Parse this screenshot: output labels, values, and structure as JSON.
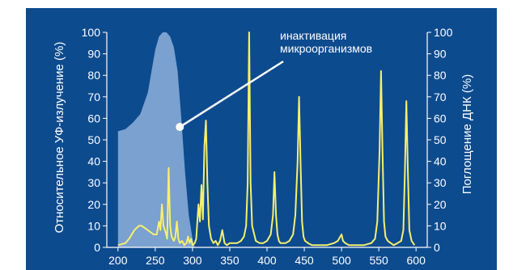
{
  "chart_data": {
    "type": "line",
    "title": "",
    "xlabel": "",
    "ylabel_left": "Относительное УФ-излучение (%)",
    "ylabel_right": "Поглощение ДНК (%)",
    "xlim": [
      185,
      615
    ],
    "ylim_left": [
      0,
      100
    ],
    "ylim_right": [
      0,
      100
    ],
    "x_ticks": [
      200,
      250,
      300,
      350,
      400,
      450,
      500,
      550,
      600
    ],
    "y_ticks_left": [
      0,
      10,
      20,
      30,
      40,
      50,
      60,
      70,
      80,
      90,
      100
    ],
    "y_ticks_right": [
      0,
      10,
      20,
      30,
      40,
      50,
      60,
      70,
      80,
      90,
      100
    ],
    "annotation": {
      "lines": [
        "инактивация",
        "микроорганизмов"
      ],
      "target_x": 283,
      "target_y": 56
    },
    "series": [
      {
        "role": "area",
        "axis": "right",
        "color": "#7aa1cf",
        "x": [
          200,
          210,
          220,
          230,
          240,
          245,
          250,
          255,
          260,
          265,
          270,
          275,
          280,
          285,
          290,
          295,
          300,
          303
        ],
        "y": [
          54,
          55,
          58,
          62,
          72,
          82,
          92,
          98,
          100,
          100,
          98,
          93,
          82,
          60,
          35,
          15,
          4,
          0
        ]
      },
      {
        "role": "line",
        "axis": "left",
        "color": "#f7f06b",
        "x": [
          200,
          210,
          215,
          222,
          228,
          232,
          236,
          240,
          244,
          248,
          252,
          255,
          257,
          259,
          261,
          264,
          266,
          268,
          270,
          272,
          275,
          277,
          279,
          281,
          283,
          286,
          289,
          292,
          294,
          296,
          298,
          300,
          303,
          305,
          308,
          310,
          312,
          314,
          316,
          318,
          320,
          322,
          325,
          328,
          331,
          334,
          337,
          340,
          343,
          346,
          350,
          355,
          360,
          365,
          369,
          372,
          374,
          376,
          378,
          380,
          385,
          390,
          395,
          400,
          405,
          408,
          410,
          412,
          414,
          416,
          418,
          420,
          425,
          430,
          435,
          438,
          441,
          443,
          445,
          447,
          449,
          451,
          455,
          460,
          470,
          480,
          490,
          495,
          500,
          502,
          505,
          510,
          520,
          530,
          540,
          545,
          548,
          551,
          553,
          555,
          557,
          559,
          562,
          566,
          570,
          575,
          580,
          583,
          585,
          587,
          589,
          591,
          594,
          598
        ],
        "y": [
          1,
          2,
          4,
          8,
          10,
          10,
          9,
          8,
          7,
          6,
          6,
          12,
          8,
          20,
          10,
          7,
          4,
          37,
          10,
          5,
          3,
          5,
          12,
          4,
          2,
          3,
          1,
          2,
          5,
          2,
          4,
          1,
          2,
          4,
          20,
          12,
          29,
          13,
          47,
          59,
          30,
          10,
          4,
          2,
          3,
          1,
          3,
          8,
          2,
          1,
          2,
          2,
          2,
          3,
          5,
          10,
          30,
          100,
          30,
          10,
          3,
          2,
          2,
          3,
          6,
          15,
          35,
          15,
          6,
          3,
          2,
          2,
          2,
          3,
          6,
          15,
          40,
          70,
          40,
          12,
          5,
          3,
          2,
          1,
          1,
          1,
          2,
          3,
          6,
          3,
          2,
          1,
          1,
          1,
          2,
          4,
          12,
          45,
          82,
          45,
          12,
          5,
          3,
          2,
          1,
          2,
          3,
          8,
          35,
          68,
          35,
          8,
          3,
          1
        ]
      }
    ]
  }
}
